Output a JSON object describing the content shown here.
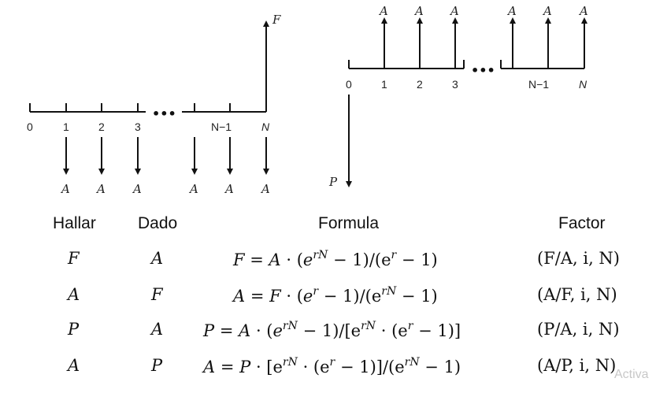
{
  "diagram_left": {
    "ticks": [
      "0",
      "1",
      "2",
      "3",
      "N−1",
      "N"
    ],
    "ellipsis": "•••",
    "future_label": "F",
    "payment_label": "A"
  },
  "diagram_right": {
    "ticks": [
      "0",
      "1",
      "2",
      "3",
      "N−1",
      "N"
    ],
    "ellipsis": "•••",
    "present_label": "P",
    "payment_label": "A"
  },
  "table": {
    "headers": {
      "find": "Hallar",
      "given": "Dado",
      "formula": "Formula",
      "factor": "Factor"
    },
    "rows": [
      {
        "find": "F",
        "given": "A",
        "formula": {
          "lhs": "F",
          "op": "A",
          "exp1": "rN",
          "mid": "− 1)/(e",
          "exp2": "r",
          "tail": "− 1)"
        },
        "factor": "(F/A, i, N)"
      },
      {
        "find": "A",
        "given": "F",
        "formula": {
          "lhs": "A",
          "op": "F",
          "exp1": "r",
          "mid": "− 1)/(e",
          "exp2": "rN",
          "tail": "− 1)"
        },
        "factor": "(A/F, i, N)"
      },
      {
        "find": "P",
        "given": "A",
        "formula": {
          "lhs": "P",
          "op": "A",
          "exp1": "rN",
          "mid": "− 1)/[e",
          "exp2": "rN",
          "mid2": "· (e",
          "exp3": "r",
          "tail": "− 1)]"
        },
        "factor": "(P/A, i, N)"
      },
      {
        "find": "A",
        "given": "P",
        "formula": {
          "lhs": "A",
          "op": "P",
          "open": "[e",
          "exp1": "rN",
          "mid": "· (e",
          "exp2": "r",
          "mid2": "− 1)]/(e",
          "exp3": "rN",
          "tail": "− 1)"
        },
        "factor": "(A/P, i, N)"
      }
    ]
  },
  "watermark": "Activa"
}
